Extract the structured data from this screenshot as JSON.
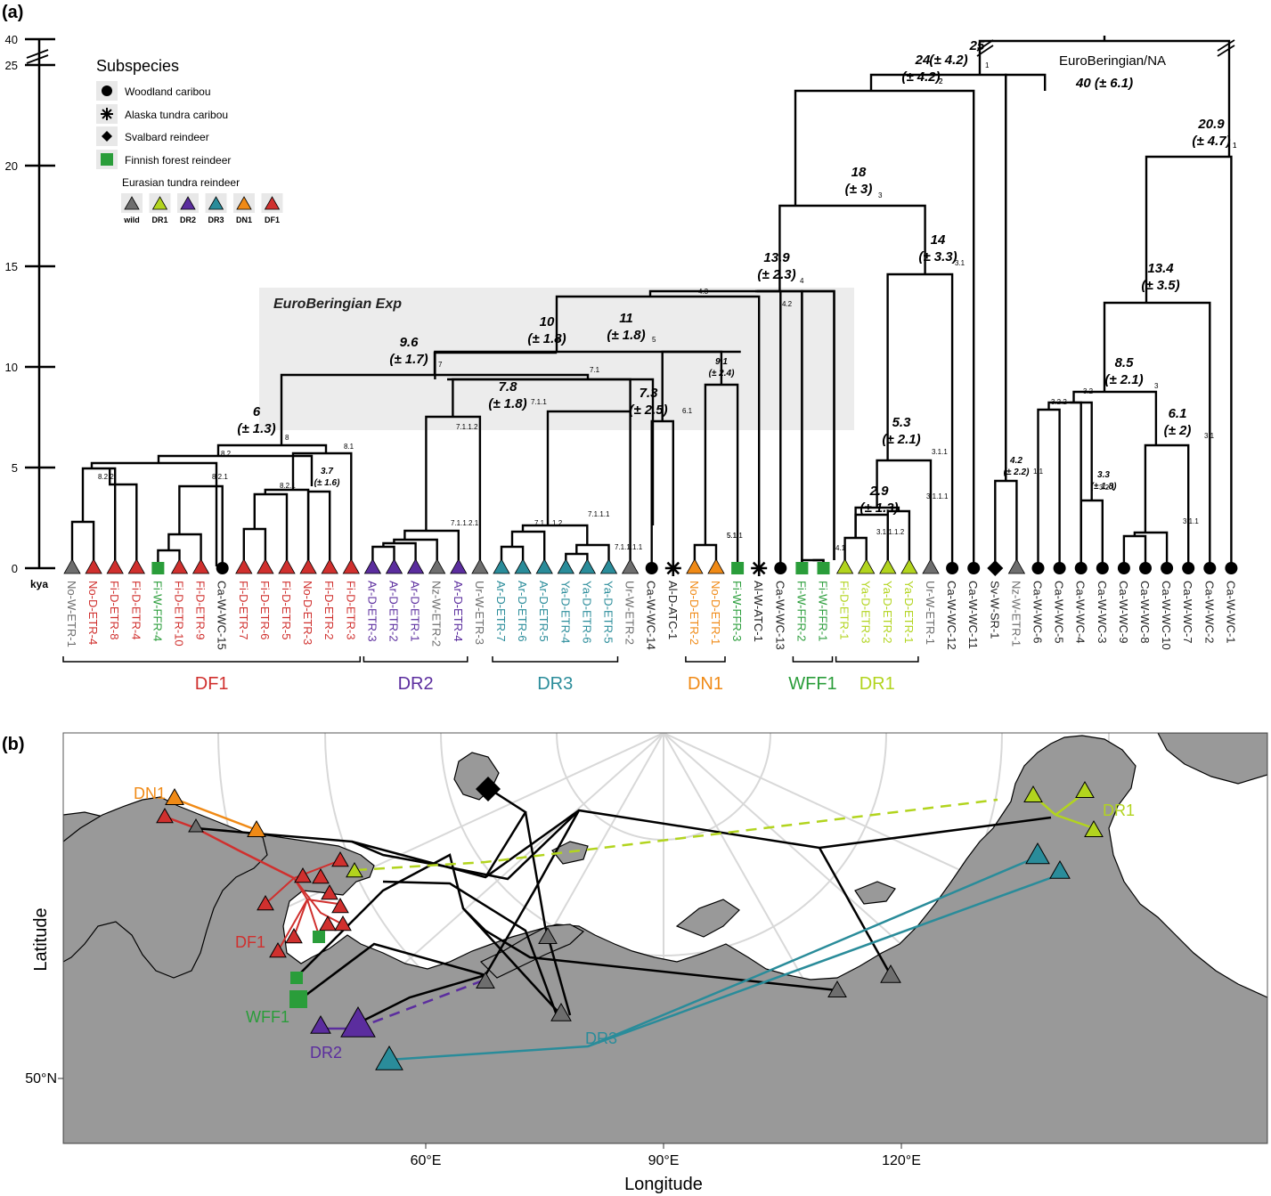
{
  "panel_a": {
    "label": "(a)",
    "axis": {
      "ticks": [
        {
          "v": 0,
          "label": "0"
        },
        {
          "v": 5,
          "label": "5"
        },
        {
          "v": 10,
          "label": "10"
        },
        {
          "v": 15,
          "label": "15"
        },
        {
          "v": 20,
          "label": "20"
        },
        {
          "v": 25,
          "label": "25"
        },
        {
          "v": 40,
          "label": "40"
        }
      ],
      "unit": "kya"
    },
    "legend": {
      "title": "Subspecies",
      "items": [
        {
          "label": "Woodland caribou",
          "symbol": "circle",
          "color": "#000000"
        },
        {
          "label": "Alaska tundra caribou",
          "symbol": "asterisk",
          "color": "#000000"
        },
        {
          "label": "Svalbard reindeer",
          "symbol": "diamond",
          "color": "#000000"
        },
        {
          "label": "Finnish forest reindeer",
          "symbol": "square",
          "color": "#2a9d3a"
        }
      ],
      "eurasian_title": "Eurasian tundra reindeer",
      "eurasian_items": [
        {
          "label": "wild",
          "color": "#6e6e6e"
        },
        {
          "label": "DR1",
          "color": "#b2d41e"
        },
        {
          "label": "DR2",
          "color": "#5b2d9e"
        },
        {
          "label": "DR3",
          "color": "#2a8c9a"
        },
        {
          "label": "DN1",
          "color": "#f08a16"
        },
        {
          "label": "DF1",
          "color": "#d0302e"
        }
      ]
    },
    "shaded_label": "EuroBeringian Exp",
    "root_label": "EuroBeringian/NA",
    "root_age": "40 (± 6.1)",
    "tips": [
      {
        "label": "No-W-ETR-1",
        "shape": "tri",
        "color": "#6e6e6e"
      },
      {
        "label": "No-D-ETR-4",
        "shape": "tri",
        "color": "#d0302e"
      },
      {
        "label": "Fi-D-ETR-8",
        "shape": "tri",
        "color": "#d0302e"
      },
      {
        "label": "Fi-D-ETR-4",
        "shape": "tri",
        "color": "#d0302e"
      },
      {
        "label": "Fi-W-FFR-4",
        "shape": "sq",
        "color": "#2a9d3a"
      },
      {
        "label": "Fi-D-ETR-10",
        "shape": "tri",
        "color": "#d0302e"
      },
      {
        "label": "Fi-D-ETR-9",
        "shape": "tri",
        "color": "#d0302e"
      },
      {
        "label": "Ca-W-WC-15",
        "shape": "circ",
        "color": "#000000"
      },
      {
        "label": "Fi-D-ETR-7",
        "shape": "tri",
        "color": "#d0302e"
      },
      {
        "label": "Fi-D-ETR-6",
        "shape": "tri",
        "color": "#d0302e"
      },
      {
        "label": "Fi-D-ETR-5",
        "shape": "tri",
        "color": "#d0302e"
      },
      {
        "label": "No-D-ETR-3",
        "shape": "tri",
        "color": "#d0302e"
      },
      {
        "label": "Fi-D-ETR-2",
        "shape": "tri",
        "color": "#d0302e"
      },
      {
        "label": "Fi-D-ETR-3",
        "shape": "tri",
        "color": "#d0302e"
      },
      {
        "label": "Ar-D-ETR-3",
        "shape": "tri",
        "color": "#5b2d9e"
      },
      {
        "label": "Ar-D-ETR-2",
        "shape": "tri",
        "color": "#5b2d9e"
      },
      {
        "label": "Ar-D-ETR-1",
        "shape": "tri",
        "color": "#5b2d9e"
      },
      {
        "label": "Nz-W-ETR-2",
        "shape": "tri",
        "color": "#6e6e6e"
      },
      {
        "label": "Ar-D-ETR-4",
        "shape": "tri",
        "color": "#5b2d9e"
      },
      {
        "label": "Ur-W-ETR-3",
        "shape": "tri",
        "color": "#6e6e6e"
      },
      {
        "label": "Ar-D-ETR-7",
        "shape": "tri",
        "color": "#2a8c9a"
      },
      {
        "label": "Ar-D-ETR-6",
        "shape": "tri",
        "color": "#2a8c9a"
      },
      {
        "label": "Ar-D-ETR-5",
        "shape": "tri",
        "color": "#2a8c9a"
      },
      {
        "label": "Ya-D-ETR-4",
        "shape": "tri",
        "color": "#2a8c9a"
      },
      {
        "label": "Ya-D-ETR-6",
        "shape": "tri",
        "color": "#2a8c9a"
      },
      {
        "label": "Ya-D-ETR-5",
        "shape": "tri",
        "color": "#2a8c9a"
      },
      {
        "label": "Ur-W-ETR-2",
        "shape": "tri",
        "color": "#6e6e6e"
      },
      {
        "label": "Ca-W-WC-14",
        "shape": "circ",
        "color": "#000000"
      },
      {
        "label": "Al-D-ATC-1",
        "shape": "ast",
        "color": "#000000"
      },
      {
        "label": "No-D-ETR-2",
        "shape": "tri",
        "color": "#f08a16"
      },
      {
        "label": "No-D-ETR-1",
        "shape": "tri",
        "color": "#f08a16"
      },
      {
        "label": "Fi-W-FFR-3",
        "shape": "sq",
        "color": "#2a9d3a"
      },
      {
        "label": "Al-W-ATC-1",
        "shape": "ast",
        "color": "#000000"
      },
      {
        "label": "Ca-W-WC-13",
        "shape": "circ",
        "color": "#000000"
      },
      {
        "label": "Fi-W-FFR-2",
        "shape": "sq",
        "color": "#2a9d3a"
      },
      {
        "label": "Fi-W-FFR-1",
        "shape": "sq",
        "color": "#2a9d3a"
      },
      {
        "label": "Fi-D-ETR-1",
        "shape": "tri",
        "color": "#b2d41e"
      },
      {
        "label": "Ya-D-ETR-3",
        "shape": "tri",
        "color": "#b2d41e"
      },
      {
        "label": "Ya-D-ETR-2",
        "shape": "tri",
        "color": "#b2d41e"
      },
      {
        "label": "Ya-D-ETR-1",
        "shape": "tri",
        "color": "#b2d41e"
      },
      {
        "label": "Ur-W-ETR-1",
        "shape": "tri",
        "color": "#6e6e6e"
      },
      {
        "label": "Ca-W-WC-12",
        "shape": "circ",
        "color": "#000000"
      },
      {
        "label": "Ca-W-WC-11",
        "shape": "circ",
        "color": "#000000"
      },
      {
        "label": "Sv-W-SR-1",
        "shape": "dia",
        "color": "#000000"
      },
      {
        "label": "Nz-W-ETR-1",
        "shape": "tri",
        "color": "#6e6e6e"
      },
      {
        "label": "Ca-W-WC-6",
        "shape": "circ",
        "color": "#000000"
      },
      {
        "label": "Ca-W-WC-5",
        "shape": "circ",
        "color": "#000000"
      },
      {
        "label": "Ca-W-WC-4",
        "shape": "circ",
        "color": "#000000"
      },
      {
        "label": "Ca-W-WC-3",
        "shape": "circ",
        "color": "#000000"
      },
      {
        "label": "Ca-W-WC-9",
        "shape": "circ",
        "color": "#000000"
      },
      {
        "label": "Ca-W-WC-8",
        "shape": "circ",
        "color": "#000000"
      },
      {
        "label": "Ca-W-WC-10",
        "shape": "circ",
        "color": "#000000"
      },
      {
        "label": "Ca-W-WC-7",
        "shape": "circ",
        "color": "#000000"
      },
      {
        "label": "Ca-W-WC-2",
        "shape": "circ",
        "color": "#000000"
      },
      {
        "label": "Ca-W-WC-1",
        "shape": "circ",
        "color": "#000000"
      }
    ],
    "clades": [
      {
        "label": "DF1",
        "color": "#d0302e",
        "from": 0,
        "to": 13
      },
      {
        "label": "DR2",
        "color": "#5b2d9e",
        "from": 14,
        "to": 18
      },
      {
        "label": "DR3",
        "color": "#2a8c9a",
        "from": 20,
        "to": 25
      },
      {
        "label": "DN1",
        "color": "#f08a16",
        "from": 29,
        "to": 30
      },
      {
        "label": "WFF1",
        "color": "#2a9d3a",
        "from": 34,
        "to": 35
      },
      {
        "label": "DR1",
        "color": "#b2d41e",
        "from": 36,
        "to": 39
      }
    ],
    "node_ages": [
      {
        "id": "n25",
        "age": "25"
      },
      {
        "id": "n24",
        "age": "24",
        "ci": "(± 4.2)",
        "ci2": "(± 4.2)"
      },
      {
        "id": "n20_9",
        "age": "20.9",
        "ci": "(± 4.7)"
      },
      {
        "id": "n18",
        "age": "18",
        "ci": "(± 3)"
      },
      {
        "id": "n14",
        "age": "14",
        "ci": "(± 3.3)"
      },
      {
        "id": "n13_9",
        "age": "13.9",
        "ci": "(± 2.3)"
      },
      {
        "id": "n13_4",
        "age": "13.4",
        "ci": "(± 3.5)"
      },
      {
        "id": "n11",
        "age": "11",
        "ci": "(± 1.8)"
      },
      {
        "id": "n10",
        "age": "10",
        "ci": "(± 1.8)"
      },
      {
        "id": "n9_6",
        "age": "9.6",
        "ci": "(± 1.7)"
      },
      {
        "id": "n9_1",
        "age": "9.1",
        "ci": "(± 2.4)"
      },
      {
        "id": "n8_5",
        "age": "8.5",
        "ci": "(± 2.1)"
      },
      {
        "id": "n7_8",
        "age": "7.8",
        "ci": "(± 1.8)"
      },
      {
        "id": "n7_3",
        "age": "7.3",
        "ci": "(± 2.5)"
      },
      {
        "id": "n6",
        "age": "6",
        "ci": "(± 1.3)"
      },
      {
        "id": "n6_1",
        "age": "6.1",
        "ci": "(± 2)"
      },
      {
        "id": "n5_3",
        "age": "5.3",
        "ci": "(± 2.1)"
      },
      {
        "id": "n4_2",
        "age": "4.2",
        "ci": "(± 2.2)"
      },
      {
        "id": "n3_7",
        "age": "3.7",
        "ci": "(± 1.6)"
      },
      {
        "id": "n3_3",
        "age": "3.3",
        "ci": "(± 1.8)"
      },
      {
        "id": "n2_9",
        "age": "2.9",
        "ci": "(± 1.3)"
      }
    ],
    "node_ids": [
      "1",
      "2",
      "1",
      "3",
      "3.1",
      "4",
      "4.2",
      "4.3",
      "2",
      "5",
      "6",
      "7",
      "7.1",
      "7.1.1",
      "7.1.1.2",
      "7.1.1.2.1",
      "7.1.1.1.2",
      "7.1.1.1",
      "7.1.1.1.1",
      "5.1",
      "5.1.1",
      "6.1",
      "8",
      "8.1",
      "8.2",
      "8.2.2",
      "8.2.1",
      "8.2.1",
      "4.1",
      "3.1.1",
      "3.1.1.1",
      "3.1.1.1.2",
      "1.1",
      "3",
      "3.2",
      "3.2.2",
      "3.2.1",
      "3.1",
      "3.1.1",
      "1"
    ]
  },
  "panel_b": {
    "label": "(b)",
    "ocean_color": "#ffffff",
    "land_color": "#999999",
    "xlabel": "Longitude",
    "ylabel": "Latitude",
    "x_ticks": [
      "60°E",
      "90°E",
      "120°E"
    ],
    "y_ticks": [
      "50°N"
    ],
    "group_labels": [
      {
        "label": "DN1",
        "color": "#f08a16"
      },
      {
        "label": "DF1",
        "color": "#d0302e"
      },
      {
        "label": "WFF1",
        "color": "#2a9d3a"
      },
      {
        "label": "DR2",
        "color": "#5b2d9e"
      },
      {
        "label": "DR3",
        "color": "#2a8c9a"
      },
      {
        "label": "DR1",
        "color": "#b2d41e"
      }
    ]
  }
}
